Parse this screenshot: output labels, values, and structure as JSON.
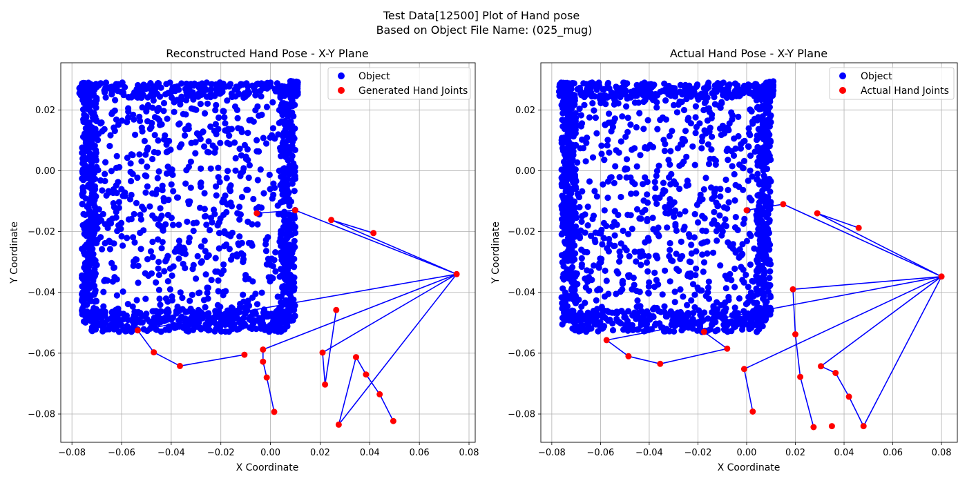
{
  "figure": {
    "suptitle_line1": "Test Data[12500] Plot of Hand pose",
    "suptitle_line2": "Based on Object File Name: (025_mug)"
  },
  "chart_data": [
    {
      "type": "scatter",
      "title": "Reconstructed Hand Pose - X-Y Plane",
      "xlabel": "X Coordinate",
      "ylabel": "Y Coordinate",
      "xlim": [
        -0.0845,
        0.0825
      ],
      "ylim": [
        -0.0893,
        0.0355
      ],
      "xticks": [
        -0.08,
        -0.06,
        -0.04,
        -0.02,
        0.0,
        0.02,
        0.04,
        0.06,
        0.08
      ],
      "xtick_labels": [
        "−0.08",
        "−0.06",
        "−0.04",
        "−0.02",
        "0.00",
        "0.02",
        "0.04",
        "0.06",
        "0.08"
      ],
      "yticks": [
        -0.08,
        -0.06,
        -0.04,
        -0.02,
        0.0,
        0.02
      ],
      "ytick_labels": [
        "−0.08",
        "−0.06",
        "−0.04",
        "−0.02",
        "0.00",
        "0.02"
      ],
      "grid": true,
      "legend_position": "upper right",
      "object_series": {
        "name": "Object",
        "color": "#0000ff",
        "shape": "mug-silhouette",
        "x_range": [
          -0.077,
          0.011
        ],
        "y_range": [
          -0.054,
          0.03
        ]
      },
      "joints": {
        "name": "Generated Hand Joints",
        "color": "#ff0000",
        "x": [
          0.075,
          0.01,
          -0.0055,
          0.0245,
          0.0415,
          -0.0535,
          -0.047,
          -0.0365,
          -0.0105,
          -0.003,
          -0.003,
          -0.0015,
          0.0015,
          0.021,
          0.022,
          0.0265,
          0.0275,
          0.0345,
          0.0385,
          0.044,
          0.0495
        ],
        "y": [
          -0.034,
          -0.013,
          -0.014,
          -0.0162,
          -0.0205,
          -0.0525,
          -0.0597,
          -0.0642,
          -0.0605,
          -0.0588,
          -0.0628,
          -0.068,
          -0.0793,
          -0.0598,
          -0.0703,
          -0.0458,
          -0.0835,
          -0.0613,
          -0.067,
          -0.0735,
          -0.0823
        ]
      },
      "bones": [
        [
          0,
          1
        ],
        [
          1,
          2
        ],
        [
          0,
          3
        ],
        [
          3,
          4
        ],
        [
          0,
          5
        ],
        [
          5,
          6
        ],
        [
          6,
          7
        ],
        [
          7,
          8
        ],
        [
          0,
          9
        ],
        [
          9,
          10
        ],
        [
          10,
          11
        ],
        [
          11,
          12
        ],
        [
          0,
          13
        ],
        [
          13,
          14
        ],
        [
          14,
          15
        ],
        [
          0,
          16
        ],
        [
          16,
          17
        ],
        [
          17,
          18
        ],
        [
          18,
          19
        ],
        [
          19,
          20
        ]
      ],
      "line_color": "#0000ff"
    },
    {
      "type": "scatter",
      "title": "Actual Hand Pose - X-Y Plane",
      "xlabel": "X Coordinate",
      "ylabel": "Y Coordinate",
      "xlim": [
        -0.0845,
        0.0865
      ],
      "ylim": [
        -0.0893,
        0.0355
      ],
      "xticks": [
        -0.08,
        -0.06,
        -0.04,
        -0.02,
        0.0,
        0.02,
        0.04,
        0.06,
        0.08
      ],
      "xtick_labels": [
        "−0.08",
        "−0.06",
        "−0.04",
        "−0.02",
        "0.00",
        "0.02",
        "0.04",
        "0.06",
        "0.08"
      ],
      "yticks": [
        -0.08,
        -0.06,
        -0.04,
        -0.02,
        0.0,
        0.02
      ],
      "ytick_labels": [
        "−0.08",
        "−0.06",
        "−0.04",
        "−0.02",
        "0.00",
        "0.02"
      ],
      "grid": true,
      "legend_position": "upper right",
      "object_series": {
        "name": "Object",
        "color": "#0000ff",
        "shape": "mug-silhouette",
        "x_range": [
          -0.077,
          0.011
        ],
        "y_range": [
          -0.054,
          0.03
        ]
      },
      "joints": {
        "name": "Actual Hand Joints",
        "color": "#ff0000",
        "x": [
          0.08,
          0.015,
          0.0,
          0.029,
          0.046,
          -0.0575,
          -0.0485,
          -0.0355,
          -0.008,
          -0.0175,
          -0.001,
          0.0025,
          0.019,
          0.02,
          0.022,
          0.0275,
          0.0305,
          0.0365,
          0.042,
          0.048,
          0.035
        ],
        "y": [
          -0.0348,
          -0.011,
          -0.013,
          -0.014,
          -0.0188,
          -0.0557,
          -0.061,
          -0.0635,
          -0.0585,
          -0.053,
          -0.0652,
          -0.0792,
          -0.039,
          -0.0538,
          -0.0678,
          -0.0843,
          -0.0643,
          -0.0665,
          -0.0743,
          -0.084,
          -0.084
        ]
      },
      "bones": [
        [
          0,
          1
        ],
        [
          1,
          2
        ],
        [
          0,
          3
        ],
        [
          3,
          4
        ],
        [
          0,
          5
        ],
        [
          5,
          6
        ],
        [
          6,
          7
        ],
        [
          7,
          8
        ],
        [
          8,
          9
        ],
        [
          0,
          10
        ],
        [
          10,
          11
        ],
        [
          0,
          12
        ],
        [
          12,
          13
        ],
        [
          13,
          14
        ],
        [
          14,
          15
        ],
        [
          0,
          16
        ],
        [
          16,
          17
        ],
        [
          17,
          18
        ],
        [
          18,
          19
        ],
        [
          0,
          19
        ]
      ],
      "line_color": "#0000ff"
    }
  ]
}
